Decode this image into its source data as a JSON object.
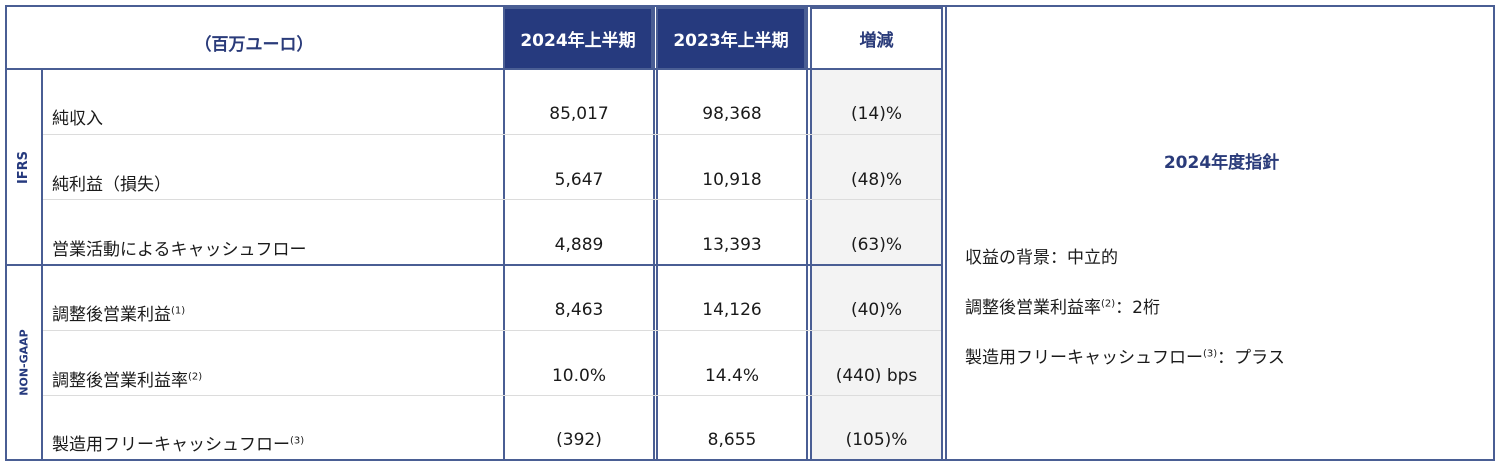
{
  "header": {
    "unit_label": "（百万ユーロ）",
    "col_2024": "2024年上半期",
    "col_2023": "2023年上半期",
    "col_change": "増減"
  },
  "groups": {
    "ifrs": "IFRS",
    "non_gaap": "NON-GAAP"
  },
  "rows": [
    {
      "label": "純収入",
      "note": "",
      "h1_2024": "85,017",
      "h1_2023": "98,368",
      "change": "(14)%"
    },
    {
      "label": "純利益（損失）",
      "note": "",
      "h1_2024": "5,647",
      "h1_2023": "10,918",
      "change": "(48)%"
    },
    {
      "label": "営業活動によるキャッシュフロー",
      "note": "",
      "h1_2024": "4,889",
      "h1_2023": "13,393",
      "change": "(63)%"
    },
    {
      "label": "調整後営業利益",
      "note": "(1)",
      "h1_2024": "8,463",
      "h1_2023": "14,126",
      "change": "(40)%"
    },
    {
      "label": "調整後営業利益率",
      "note": "(2)",
      "h1_2024": "10.0%",
      "h1_2023": "14.4%",
      "change": "(440) bps"
    },
    {
      "label": "製造用フリーキャッシュフロー",
      "note": "(3)",
      "h1_2024": "(392)",
      "h1_2023": "8,655",
      "change": "(105)%"
    }
  ],
  "guidance": {
    "title": "2024年度指針",
    "items": [
      {
        "label": "収益の背景",
        "note": "",
        "value": "：中立的"
      },
      {
        "label": "調整後営業利益率",
        "note": "(2)",
        "value": "：2桁"
      },
      {
        "label": "製造用フリーキャッシュフロー",
        "note": "(3)",
        "value": "：プラス"
      }
    ]
  },
  "colors": {
    "header_dark": "#263a7e",
    "border": "#4a5e94",
    "change_col_bg": "#f3f3f3"
  }
}
